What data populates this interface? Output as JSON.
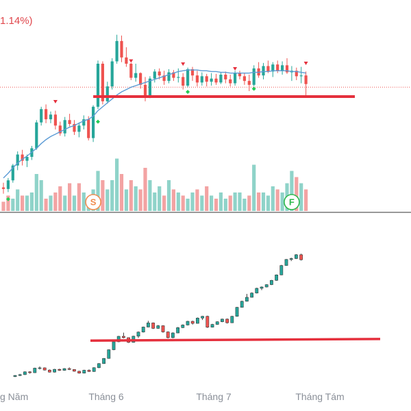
{
  "header": {
    "change_text": "1.14%)"
  },
  "colors": {
    "up": "#26a69a",
    "down": "#ef5350",
    "vol_up": "#8fd3c9",
    "vol_down": "#f3a3a3",
    "ma": "#5b9bd5",
    "support": "#e5303d",
    "signal_buy": "#22cc55",
    "signal_sell": "#e5303d",
    "marker_s": "#f08c4f",
    "marker_f": "#2db84a",
    "divider": "#333333"
  },
  "markers": [
    {
      "label": "S"
    },
    {
      "label": "F"
    }
  ],
  "chart_data": [
    {
      "type": "candlestick",
      "title": "",
      "price_range": [
        100,
        121
      ],
      "support_level": 112.6,
      "last_price_line": 113.8,
      "candles": [
        [
          101,
          101.6,
          100.2,
          100.8
        ],
        [
          100.8,
          102.2,
          100.4,
          101.9
        ],
        [
          101.9,
          104,
          101.6,
          103.8
        ],
        [
          103.8,
          105.6,
          103.2,
          105.2
        ],
        [
          105.2,
          105.8,
          103.8,
          104.4
        ],
        [
          104.4,
          105.2,
          103.6,
          104.9
        ],
        [
          104.9,
          106.3,
          104.5,
          106
        ],
        [
          106,
          109.6,
          105.8,
          109.3
        ],
        [
          109.3,
          111.3,
          108.9,
          111
        ],
        [
          111,
          111.6,
          109.2,
          109.7
        ],
        [
          109.7,
          110.7,
          109.2,
          110.3
        ],
        [
          110.3,
          110.8,
          108.4,
          108.9
        ],
        [
          108.9,
          109.4,
          107.6,
          107.9
        ],
        [
          107.9,
          110,
          107.5,
          109.6
        ],
        [
          109.6,
          110.4,
          108.8,
          109.1
        ],
        [
          109.1,
          109.6,
          107.7,
          108.1
        ],
        [
          108.1,
          109.3,
          107.4,
          108.9
        ],
        [
          108.9,
          110.2,
          108.4,
          109.7
        ],
        [
          109.7,
          110.1,
          107,
          107.3
        ],
        [
          107.3,
          111.5,
          106.8,
          111.3
        ],
        [
          111.3,
          117.2,
          111,
          116.8
        ],
        [
          116.8,
          117.1,
          111.6,
          112
        ],
        [
          112,
          114.5,
          111.7,
          113.9
        ],
        [
          113.9,
          117.5,
          113.5,
          117.1
        ],
        [
          117.1,
          120.5,
          116.8,
          119.7
        ],
        [
          119.7,
          120.4,
          117,
          117.6
        ],
        [
          117.6,
          118.9,
          116.4,
          116.8
        ],
        [
          116.8,
          116.9,
          114.7,
          115
        ],
        [
          115,
          116.8,
          114.5,
          115.6
        ],
        [
          115.6,
          115.7,
          113.6,
          114.1
        ],
        [
          114.1,
          115.1,
          112,
          112.6
        ],
        [
          112.6,
          115.2,
          112.4,
          114.9
        ],
        [
          114.9,
          116.1,
          114.4,
          115.8
        ],
        [
          115.8,
          116.2,
          114.8,
          115.3
        ],
        [
          115.3,
          115.9,
          114.1,
          114.6
        ],
        [
          114.6,
          116.1,
          114.3,
          115.7
        ],
        [
          115.7,
          116,
          114.6,
          115
        ],
        [
          115,
          116.2,
          114.4,
          115.1
        ],
        [
          115.1,
          115.6,
          113.5,
          114
        ],
        [
          114,
          116.3,
          113.8,
          116.1
        ],
        [
          116.1,
          116.4,
          114.6,
          115.3
        ],
        [
          115.3,
          115.9,
          113.9,
          114.4
        ],
        [
          114.4,
          115.7,
          114,
          115.2
        ],
        [
          115.2,
          115.5,
          113.9,
          114.5
        ],
        [
          114.5,
          115.6,
          114,
          114.9
        ],
        [
          114.9,
          115.5,
          114.1,
          114.4
        ],
        [
          114.4,
          115.7,
          114.2,
          115.4
        ],
        [
          115.4,
          115.8,
          114.3,
          114.8
        ],
        [
          114.8,
          115.4,
          113.9,
          114.3
        ],
        [
          114.3,
          115.9,
          114,
          115.6
        ],
        [
          115.6,
          115.9,
          114.8,
          115.2
        ],
        [
          115.2,
          115.6,
          114.1,
          114.6
        ],
        [
          114.6,
          115.4,
          113.3,
          114.1
        ],
        [
          114.1,
          116.6,
          113.9,
          116.2
        ],
        [
          116.2,
          117,
          115,
          115.3
        ],
        [
          115.3,
          116.9,
          114.8,
          116.5
        ],
        [
          116.5,
          117.2,
          115.6,
          115.8
        ],
        [
          115.8,
          117,
          115.1,
          116.7
        ],
        [
          116.7,
          117.2,
          115.6,
          115.9
        ],
        [
          115.9,
          117.1,
          115.4,
          116.6
        ],
        [
          116.6,
          117.5,
          115.5,
          115.7
        ],
        [
          115.7,
          116.5,
          114.6,
          115.9
        ],
        [
          115.9,
          116.3,
          114.7,
          115.2
        ],
        [
          115.2,
          116.4,
          114.3,
          115.3
        ],
        [
          115.3,
          115.8,
          112.6,
          114.2
        ]
      ],
      "ma_values": [
        102.2,
        102.8,
        103.5,
        104.1,
        104.6,
        105,
        105.5,
        106,
        106.6,
        107.1,
        107.5,
        107.8,
        108.1,
        108.4,
        108.7,
        108.9,
        109.2,
        109.5,
        109.7,
        110.1,
        110.8,
        111.3,
        111.8,
        112.3,
        112.8,
        113.2,
        113.5,
        113.8,
        114,
        114.2,
        114.4,
        114.6,
        114.8,
        115,
        115.2,
        115.4,
        115.6,
        115.8,
        115.9,
        116,
        116,
        116,
        115.9,
        115.9,
        115.8,
        115.8,
        115.7,
        115.7,
        115.6,
        115.6,
        115.6,
        115.6,
        115.6,
        115.7,
        115.7,
        115.8,
        115.8,
        115.9,
        115.9,
        115.9,
        115.9,
        115.8,
        115.8,
        115.7,
        115.6
      ],
      "buy_signals": [
        [
          1,
          99.5
        ],
        [
          20,
          109.4
        ],
        [
          39,
          113.2
        ],
        [
          53,
          113.6
        ]
      ],
      "sell_signals": [
        [
          11,
          111.9
        ],
        [
          27,
          117.1
        ],
        [
          38,
          116.7
        ],
        [
          49,
          116.1
        ],
        [
          64,
          116.8
        ]
      ],
      "volume": [
        [
          0,
          3
        ],
        [
          0,
          5
        ],
        [
          1,
          4
        ],
        [
          1,
          7
        ],
        [
          0,
          5
        ],
        [
          1,
          5
        ],
        [
          1,
          6
        ],
        [
          1,
          12
        ],
        [
          1,
          10
        ],
        [
          0,
          4
        ],
        [
          1,
          5
        ],
        [
          0,
          6
        ],
        [
          0,
          8
        ],
        [
          1,
          5
        ],
        [
          0,
          9
        ],
        [
          1,
          5
        ],
        [
          0,
          9
        ],
        [
          1,
          6
        ],
        [
          1,
          4
        ],
        [
          1,
          7
        ],
        [
          1,
          13
        ],
        [
          0,
          10
        ],
        [
          1,
          7
        ],
        [
          1,
          10
        ],
        [
          1,
          17
        ],
        [
          0,
          12
        ],
        [
          1,
          7
        ],
        [
          0,
          10
        ],
        [
          1,
          8
        ],
        [
          0,
          7
        ],
        [
          0,
          14
        ],
        [
          1,
          10
        ],
        [
          1,
          6
        ],
        [
          1,
          8
        ],
        [
          0,
          5
        ],
        [
          1,
          10
        ],
        [
          0,
          7
        ],
        [
          1,
          6
        ],
        [
          0,
          5
        ],
        [
          1,
          4
        ],
        [
          1,
          6
        ],
        [
          0,
          7
        ],
        [
          1,
          5
        ],
        [
          0,
          8
        ],
        [
          1,
          5
        ],
        [
          0,
          4
        ],
        [
          1,
          6
        ],
        [
          1,
          4
        ],
        [
          0,
          5
        ],
        [
          1,
          6
        ],
        [
          1,
          6
        ],
        [
          1,
          4
        ],
        [
          0,
          5
        ],
        [
          1,
          15
        ],
        [
          0,
          6
        ],
        [
          1,
          6
        ],
        [
          1,
          5
        ],
        [
          1,
          8
        ],
        [
          0,
          7
        ],
        [
          1,
          6
        ],
        [
          1,
          9
        ],
        [
          1,
          13
        ],
        [
          0,
          11
        ],
        [
          1,
          9
        ],
        [
          0,
          7
        ]
      ]
    },
    {
      "type": "candlestick",
      "title": "",
      "price_range": [
        0,
        100
      ],
      "x_tick_labels": [
        {
          "index": 0,
          "text": "g Năm"
        },
        {
          "index": 16,
          "text": "Tháng 6"
        },
        {
          "index": 37,
          "text": "Tháng 7"
        },
        {
          "index": 57,
          "text": "Tháng Tám"
        }
      ],
      "resistance_line": [
        [
          16,
          29.2
        ],
        [
          68,
          30.3
        ]
      ],
      "candles": [
        [
          4.8,
          5.8,
          4.4,
          5.5
        ],
        [
          5.5,
          6.6,
          5.1,
          6.1
        ],
        [
          6.1,
          8.3,
          5.9,
          8
        ],
        [
          8,
          8.4,
          6.8,
          7.4
        ],
        [
          7.4,
          10.8,
          7.2,
          10.5
        ],
        [
          10.5,
          11.6,
          9.6,
          10.7
        ],
        [
          10.7,
          11,
          8.9,
          9.2
        ],
        [
          9.2,
          9.6,
          7.5,
          7.8
        ],
        [
          7.8,
          10,
          7.5,
          9.7
        ],
        [
          9.7,
          10.1,
          8.6,
          9
        ],
        [
          9,
          10.5,
          8.7,
          10.2
        ],
        [
          10.2,
          11,
          9.2,
          9.6
        ],
        [
          9.6,
          9.8,
          8.1,
          8.4
        ],
        [
          8.4,
          8.7,
          6.8,
          7.1
        ],
        [
          7.1,
          9.4,
          6.9,
          9.1
        ],
        [
          9.1,
          9.6,
          7.9,
          8.2
        ],
        [
          8.2,
          11.1,
          8,
          10.8
        ],
        [
          10.8,
          13.9,
          10.5,
          13.6
        ],
        [
          13.6,
          17.3,
          13.4,
          17.1
        ],
        [
          17.1,
          23.2,
          16.9,
          23
        ],
        [
          23,
          28.7,
          22.7,
          28.4
        ],
        [
          28.4,
          32.4,
          28.1,
          32.1
        ],
        [
          32.1,
          34.6,
          30.7,
          31.2
        ],
        [
          31.2,
          31.4,
          27.6,
          28
        ],
        [
          28,
          32.5,
          27.8,
          32.2
        ],
        [
          32.2,
          35.4,
          31,
          35
        ],
        [
          35,
          38.7,
          34.7,
          38.4
        ],
        [
          38.4,
          42.6,
          38.2,
          41.2
        ],
        [
          41.2,
          41.5,
          37.1,
          37.5
        ],
        [
          37.5,
          39.8,
          37.2,
          39.3
        ],
        [
          39.3,
          39.6,
          34.6,
          35.1
        ],
        [
          35.1,
          35.5,
          30.7,
          31.2
        ],
        [
          31.2,
          34.8,
          30.8,
          34.4
        ],
        [
          34.4,
          38.4,
          34.2,
          38
        ],
        [
          38,
          40.2,
          37.7,
          39.8
        ],
        [
          39.8,
          42.6,
          39.5,
          42.3
        ],
        [
          42.3,
          42.7,
          40.1,
          40.9
        ],
        [
          40.9,
          44.9,
          40.7,
          44.5
        ],
        [
          44.5,
          46,
          43.2,
          45.7
        ],
        [
          45.7,
          46.1,
          37.8,
          38.3
        ],
        [
          38.3,
          40.6,
          38.1,
          40.2
        ],
        [
          40.2,
          42.3,
          39.9,
          42
        ],
        [
          42,
          44.1,
          41.7,
          43.8
        ],
        [
          43.8,
          44.2,
          40.8,
          41.3
        ],
        [
          41.3,
          46,
          41.1,
          45.7
        ],
        [
          45.7,
          52.1,
          45.4,
          51.8
        ],
        [
          51.8,
          56.3,
          51.6,
          55.9
        ],
        [
          55.9,
          60.9,
          55.7,
          58.6
        ],
        [
          58.6,
          61.9,
          58.4,
          61.5
        ],
        [
          61.5,
          65.1,
          61.2,
          64.7
        ],
        [
          64.7,
          66,
          63.5,
          65.6
        ],
        [
          65.6,
          67.5,
          65.3,
          67.2
        ],
        [
          67.2,
          70.4,
          66.9,
          70.1
        ],
        [
          70.1,
          74.1,
          69.8,
          73.8
        ],
        [
          73.8,
          80.6,
          73.6,
          80.2
        ],
        [
          80.2,
          84.6,
          80,
          84.3
        ],
        [
          84.3,
          85.5,
          83.2,
          84.9
        ],
        [
          84.9,
          87.9,
          84.6,
          87.5
        ],
        [
          87.5,
          88.2,
          83.6,
          84.1
        ]
      ]
    }
  ]
}
